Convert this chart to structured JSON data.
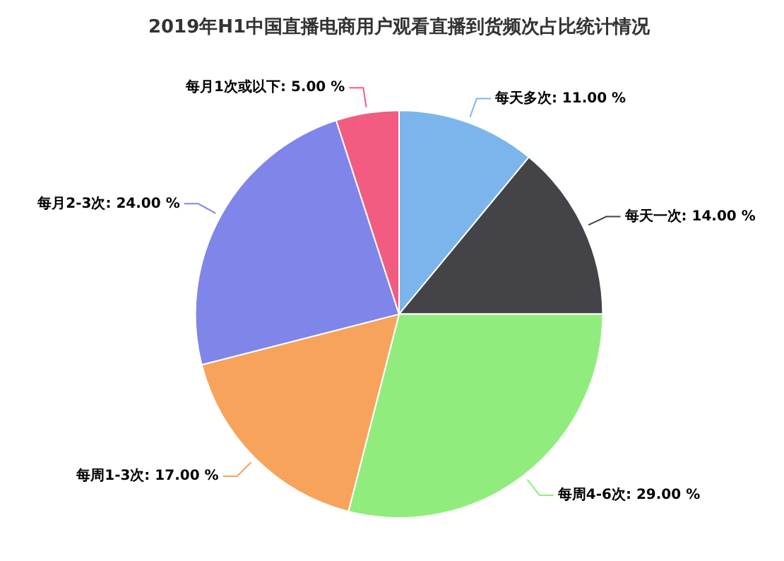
{
  "chart_data": {
    "type": "pie",
    "title": "2019年H1中国直播电商用户观看直播到货频次占比统计情况",
    "categories": [
      "每天多次",
      "每天一次",
      "每周4-6次",
      "每周1-3次",
      "每月2-3次",
      "每月1次或以下"
    ],
    "values": [
      11,
      14,
      29,
      17,
      24,
      5
    ],
    "value_labels": [
      "11.00 %",
      "14.00 %",
      "29.00 %",
      "17.00 %",
      "24.00 %",
      "5.00 %"
    ],
    "colors": [
      "#7cb5ec",
      "#434348",
      "#90ed7d",
      "#f7a35c",
      "#8085e9",
      "#f15c80"
    ],
    "legend": false
  }
}
